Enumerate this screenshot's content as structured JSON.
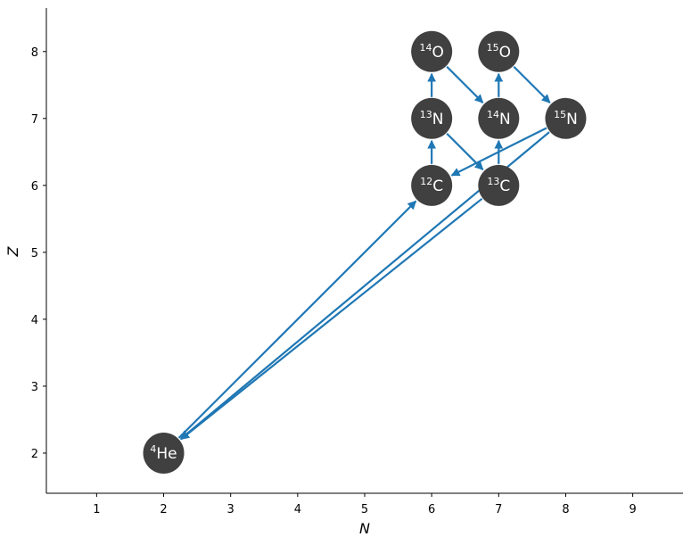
{
  "chart_data": {
    "type": "network",
    "title": "",
    "xlabel": "N",
    "ylabel": "Z",
    "xlim": [
      0.25,
      9.75
    ],
    "ylim": [
      1.4,
      8.65
    ],
    "xticks": [
      "1",
      "2",
      "3",
      "4",
      "5",
      "6",
      "7",
      "8",
      "9"
    ],
    "yticks": [
      "2",
      "3",
      "4",
      "5",
      "6",
      "7",
      "8"
    ],
    "colors": {
      "node": "#404040",
      "edge": "#1f77b4",
      "label": "#ffffff"
    },
    "nodes": [
      {
        "id": "he4",
        "mass": "4",
        "symbol": "He",
        "n": 2,
        "z": 2
      },
      {
        "id": "c12",
        "mass": "12",
        "symbol": "C",
        "n": 6,
        "z": 6
      },
      {
        "id": "c13",
        "mass": "13",
        "symbol": "C",
        "n": 7,
        "z": 6
      },
      {
        "id": "n13",
        "mass": "13",
        "symbol": "N",
        "n": 6,
        "z": 7
      },
      {
        "id": "n14",
        "mass": "14",
        "symbol": "N",
        "n": 7,
        "z": 7
      },
      {
        "id": "n15",
        "mass": "15",
        "symbol": "N",
        "n": 8,
        "z": 7
      },
      {
        "id": "o14",
        "mass": "14",
        "symbol": "O",
        "n": 6,
        "z": 8
      },
      {
        "id": "o15",
        "mass": "15",
        "symbol": "O",
        "n": 7,
        "z": 8
      }
    ],
    "edges": [
      {
        "from": "he4",
        "to": "c12"
      },
      {
        "from": "c13",
        "to": "he4"
      },
      {
        "from": "n15",
        "to": "he4"
      },
      {
        "from": "c12",
        "to": "n13"
      },
      {
        "from": "n13",
        "to": "o14"
      },
      {
        "from": "n13",
        "to": "c13"
      },
      {
        "from": "c13",
        "to": "n14"
      },
      {
        "from": "n14",
        "to": "o15"
      },
      {
        "from": "o14",
        "to": "n14"
      },
      {
        "from": "o15",
        "to": "n15"
      },
      {
        "from": "n15",
        "to": "c12"
      }
    ]
  }
}
